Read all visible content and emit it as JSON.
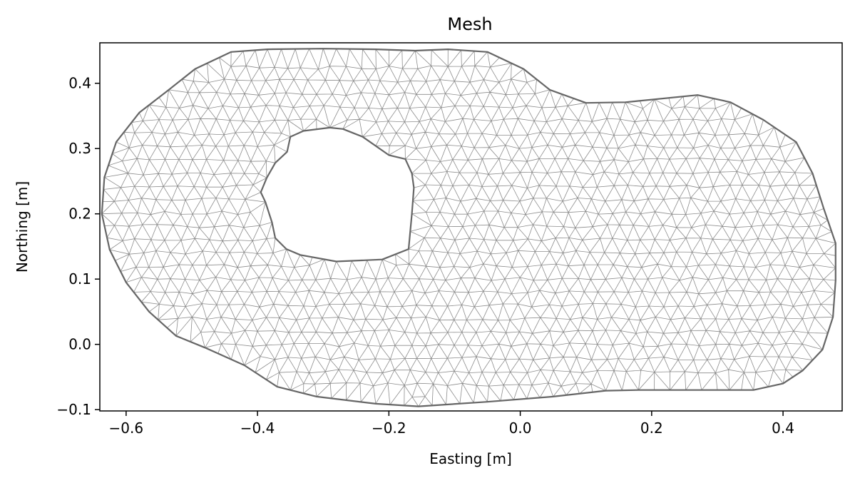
{
  "chart_data": {
    "type": "mesh",
    "title": "Mesh",
    "xlabel": "Easting [m]",
    "ylabel": "Northing [m]",
    "xlim": [
      -0.64,
      0.49
    ],
    "ylim": [
      -0.102,
      0.462
    ],
    "xticks": [
      -0.6,
      -0.4,
      -0.2,
      0.0,
      0.2,
      0.4
    ],
    "xtick_labels": [
      "−0.6",
      "−0.4",
      "−0.2",
      "0.0",
      "0.2",
      "0.4"
    ],
    "yticks": [
      -0.1,
      0.0,
      0.1,
      0.2,
      0.3,
      0.4
    ],
    "ytick_labels": [
      "−0.1",
      "0.0",
      "0.1",
      "0.2",
      "0.3",
      "0.4"
    ],
    "grid": false,
    "mesh_color": "#8c8c8c",
    "boundary_color": "#666666",
    "outer_boundary": [
      [
        -0.44,
        0.448
      ],
      [
        -0.385,
        0.452
      ],
      [
        -0.3,
        0.453
      ],
      [
        -0.22,
        0.452
      ],
      [
        -0.16,
        0.45
      ],
      [
        -0.11,
        0.452
      ],
      [
        -0.05,
        0.448
      ],
      [
        0.005,
        0.422
      ],
      [
        0.045,
        0.39
      ],
      [
        0.1,
        0.37
      ],
      [
        0.16,
        0.371
      ],
      [
        0.27,
        0.382
      ],
      [
        0.32,
        0.371
      ],
      [
        0.37,
        0.344
      ],
      [
        0.42,
        0.31
      ],
      [
        0.445,
        0.262
      ],
      [
        0.462,
        0.208
      ],
      [
        0.48,
        0.155
      ],
      [
        0.48,
        0.098
      ],
      [
        0.476,
        0.042
      ],
      [
        0.46,
        -0.008
      ],
      [
        0.43,
        -0.04
      ],
      [
        0.4,
        -0.06
      ],
      [
        0.355,
        -0.07
      ],
      [
        0.3,
        -0.07
      ],
      [
        0.18,
        -0.07
      ],
      [
        0.13,
        -0.071
      ],
      [
        0.05,
        -0.08
      ],
      [
        -0.05,
        -0.088
      ],
      [
        -0.155,
        -0.095
      ],
      [
        -0.22,
        -0.091
      ],
      [
        -0.31,
        -0.08
      ],
      [
        -0.37,
        -0.065
      ],
      [
        -0.42,
        -0.032
      ],
      [
        -0.48,
        -0.005
      ],
      [
        -0.524,
        0.013
      ],
      [
        -0.565,
        0.05
      ],
      [
        -0.6,
        0.095
      ],
      [
        -0.625,
        0.145
      ],
      [
        -0.637,
        0.2
      ],
      [
        -0.633,
        0.256
      ],
      [
        -0.615,
        0.31
      ],
      [
        -0.58,
        0.355
      ],
      [
        -0.535,
        0.39
      ],
      [
        -0.495,
        0.422
      ]
    ],
    "inner_boundary": [
      [
        -0.29,
        0.332
      ],
      [
        -0.27,
        0.33
      ],
      [
        -0.24,
        0.318
      ],
      [
        -0.2,
        0.29
      ],
      [
        -0.175,
        0.284
      ],
      [
        -0.165,
        0.262
      ],
      [
        -0.162,
        0.24
      ],
      [
        -0.165,
        0.2
      ],
      [
        -0.17,
        0.146
      ],
      [
        -0.21,
        0.13
      ],
      [
        -0.28,
        0.127
      ],
      [
        -0.335,
        0.137
      ],
      [
        -0.356,
        0.146
      ],
      [
        -0.373,
        0.163
      ],
      [
        -0.378,
        0.187
      ],
      [
        -0.388,
        0.218
      ],
      [
        -0.395,
        0.233
      ],
      [
        -0.386,
        0.255
      ],
      [
        -0.373,
        0.278
      ],
      [
        -0.355,
        0.295
      ],
      [
        -0.35,
        0.318
      ],
      [
        -0.33,
        0.327
      ]
    ]
  }
}
